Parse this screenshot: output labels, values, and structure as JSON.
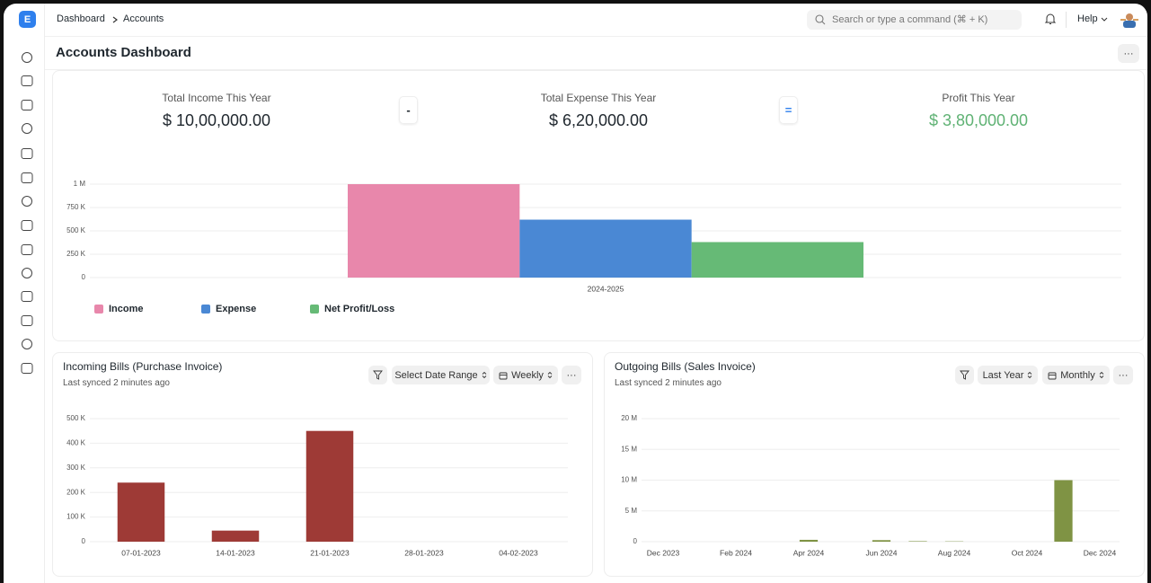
{
  "app_logo": "E",
  "breadcrumb": [
    "Dashboard",
    "Accounts"
  ],
  "search_placeholder": "Search or type a command (⌘ + K)",
  "help": "Help",
  "page_title": "Accounts Dashboard",
  "summary": {
    "cards": [
      {
        "label": "Total Income This Year",
        "value": "$ 10,00,000.00"
      },
      {
        "label": "Total Expense This Year",
        "value": "$ 6,20,000.00"
      },
      {
        "label": "Profit This Year",
        "value": "$ 3,80,000.00"
      }
    ],
    "operators": [
      "-",
      "="
    ]
  },
  "chart_data": [
    {
      "type": "bar",
      "categories": [
        "2024-2025"
      ],
      "series": [
        {
          "name": "Income",
          "color": "#e887ab",
          "values": [
            1000000
          ]
        },
        {
          "name": "Expense",
          "color": "#4a88d4",
          "values": [
            620000
          ]
        },
        {
          "name": "Net Profit/Loss",
          "color": "#66ba76",
          "values": [
            380000
          ]
        }
      ],
      "ylim": [
        0,
        1000000
      ],
      "yticks": [
        0,
        {
          "value": 250000,
          "label": "250 K"
        },
        {
          "value": 500000,
          "label": "500 K"
        },
        {
          "value": 750000,
          "label": "750 K"
        },
        {
          "value": 1000000,
          "label": "1 M"
        }
      ],
      "grid": true,
      "legend": "bottom-left"
    },
    {
      "type": "bar",
      "title": "Incoming Bills (Purchase Invoice)",
      "subtitle": "Last synced 2 minutes ago",
      "filters": [
        "Select Date Range",
        "Weekly"
      ],
      "categories": [
        "07-01-2023",
        "14-01-2023",
        "21-01-2023",
        "28-01-2023",
        "04-02-2023"
      ],
      "values": [
        240000,
        45000,
        450000,
        0,
        0
      ],
      "color": "#9e3a36",
      "ylim": [
        0,
        500000
      ],
      "yticks": [
        0,
        {
          "value": 100000,
          "label": "100 K"
        },
        {
          "value": 200000,
          "label": "200 K"
        },
        {
          "value": 300000,
          "label": "300 K"
        },
        {
          "value": 400000,
          "label": "400 K"
        },
        {
          "value": 500000,
          "label": "500 K"
        }
      ],
      "grid": true
    },
    {
      "type": "bar",
      "title": "Outgoing Bills (Sales Invoice)",
      "subtitle": "Last synced 2 minutes ago",
      "filters": [
        "Last Year",
        "Monthly"
      ],
      "categories": [
        "Dec 2023",
        null,
        "Feb 2024",
        null,
        "Apr 2024",
        null,
        "Jun 2024",
        null,
        "Aug 2024",
        null,
        "Oct 2024",
        null,
        "Dec 2024"
      ],
      "values": [
        0,
        0,
        0,
        0,
        300000,
        0,
        250000,
        80000,
        50000,
        0,
        0,
        10000000,
        0
      ],
      "color": "#7f9344",
      "ylim": [
        0,
        20000000
      ],
      "yticks": [
        0,
        {
          "value": 5000000,
          "label": "5 M"
        },
        {
          "value": 10000000,
          "label": "10 M"
        },
        {
          "value": 15000000,
          "label": "15 M"
        },
        {
          "value": 20000000,
          "label": "20 M"
        }
      ],
      "grid": true
    }
  ]
}
